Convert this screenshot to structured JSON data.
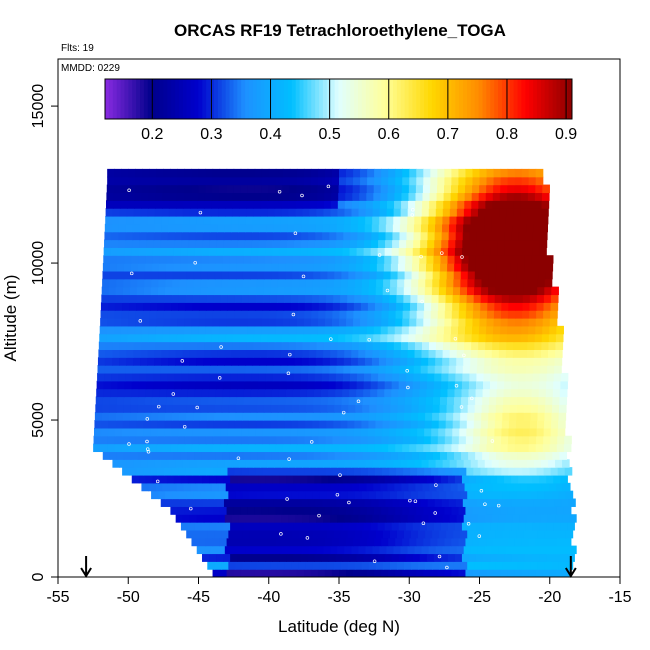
{
  "chart_data": {
    "type": "heatmap",
    "title": "ORCAS RF19 Tetrachloroethylene_TOGA",
    "flights_note": "Flts: 19",
    "date_note": "MMDD: 0229",
    "xlabel": "Latitude (deg N)",
    "ylabel": "Altitude (m)",
    "xlim": [
      -55,
      -15
    ],
    "ylim": [
      0,
      16500
    ],
    "x_ticks": [
      -55,
      -50,
      -45,
      -40,
      -35,
      -30,
      -25,
      -20,
      -15
    ],
    "y_ticks": [
      0,
      5000,
      10000,
      15000
    ],
    "colorbar": {
      "min": 0.12,
      "max": 0.91,
      "ticks": [
        0.2,
        0.3,
        0.4,
        0.5,
        0.6,
        0.7,
        0.8,
        0.9
      ],
      "colors": [
        "#8a2be2",
        "#00008b",
        "#0000cd",
        "#1e90ff",
        "#00bfff",
        "#e0ffff",
        "#ffff99",
        "#ffd700",
        "#ff8c00",
        "#ff0000",
        "#8b0000"
      ]
    },
    "flight_track_endpoints_lat": [
      -53,
      -18.5
    ],
    "data_extent": {
      "lat_min_at_altitude": [
        [
          0,
          -44
        ],
        [
          2000,
          -47
        ],
        [
          4000,
          -52.5
        ],
        [
          8000,
          -52
        ],
        [
          12500,
          -51.5
        ]
      ],
      "lat_max_at_altitude": [
        [
          1000,
          -18.5
        ],
        [
          5000,
          -19
        ],
        [
          8000,
          -19.5
        ],
        [
          11000,
          -20.5
        ],
        [
          13000,
          -20.5
        ]
      ],
      "top_altitude": 13000
    },
    "field_summary": [
      {
        "region": "lower troposphere south of -30",
        "altitude_range": [
          0,
          5000
        ],
        "approx_value": 0.3
      },
      {
        "region": "mid troposphere -50 to -35",
        "altitude_range": [
          5000,
          12000
        ],
        "approx_value": 0.35
      },
      {
        "region": "upper troposphere -30 to -20",
        "altitude_range": [
          7000,
          13000
        ],
        "approx_value": 0.75
      },
      {
        "region": "peak near -22",
        "altitude_range": [
          9000,
          12500
        ],
        "approx_value": 0.85
      },
      {
        "region": "lower troposphere -25 to -19",
        "altitude_range": [
          3000,
          6000
        ],
        "approx_value": 0.55
      }
    ]
  }
}
